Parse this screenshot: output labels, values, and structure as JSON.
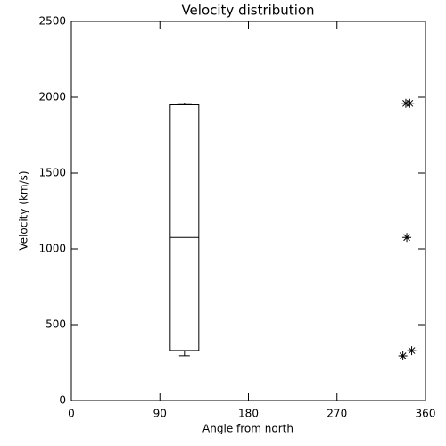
{
  "chart_data": [
    {
      "type": "box",
      "title": "Velocity distribution",
      "xlabel": "Angle from north",
      "ylabel": "Velocity (km/s)",
      "xlim": [
        0,
        360
      ],
      "xticks": [
        0,
        90,
        180,
        270,
        360
      ],
      "ylim": [
        0,
        2500
      ],
      "yticks": [
        0,
        500,
        1000,
        1500,
        2000,
        2500
      ],
      "position": 115,
      "whisker_low": 295,
      "q1": 330,
      "median": 1075,
      "q3": 1950,
      "whisker_high": 1960,
      "color": "#000000"
    },
    {
      "type": "scatter",
      "x": [
        340,
        344,
        341,
        337,
        346
      ],
      "values": [
        1960,
        1960,
        1075,
        294,
        329
      ],
      "color": "#000000"
    }
  ]
}
